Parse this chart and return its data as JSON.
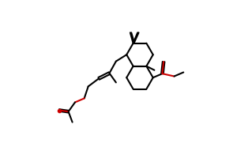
{
  "bg_color": "#ffffff",
  "line_color": "#000000",
  "red_color": "#cc0000",
  "figsize": [
    3.0,
    1.86
  ],
  "dpi": 100
}
